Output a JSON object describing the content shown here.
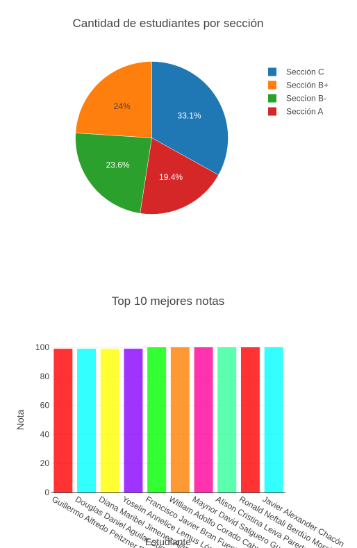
{
  "chart_data": [
    {
      "type": "pie",
      "title": "Cantidad de estudiantes por sección",
      "slices": [
        {
          "label": "Sección C",
          "percent": 33.1,
          "display": "33.1%",
          "color": "#1f77b4"
        },
        {
          "label": "Sección A",
          "percent": 19.4,
          "display": "19.4%",
          "color": "#d62728"
        },
        {
          "label": "Seccion B-",
          "percent": 23.6,
          "display": "23.6%",
          "color": "#2ca02c"
        },
        {
          "label": "Sección B+",
          "percent": 24.0,
          "display": "24%",
          "color": "#ff7f0e"
        }
      ],
      "legend": {
        "placement": "top-right",
        "order": [
          "Sección C",
          "Sección B+",
          "Seccion B-",
          "Sección A"
        ]
      }
    },
    {
      "type": "bar",
      "title": "Top 10 mejores notas",
      "xlabel": "Estudiante",
      "ylabel": "Nota",
      "ylim": [
        0,
        100
      ],
      "yticks": [
        0,
        20,
        40,
        60,
        80,
        100
      ],
      "grid": true,
      "categories": [
        "Guillermo Alfredo Peitzner Estrada",
        "Douglas Daniel Aguilar Cuque",
        "Diana Maribel Jimenez Ajanel",
        "Yoselin Annelice Lemus López",
        "Francisco Javier Bran Fuentes",
        "William Adolfo Corado Cabrera",
        "Maynor David Salguero Guerra",
        "Alison Cristina Leiva Paredes",
        "Ronald Neftali Berdúo Morales",
        "Javier Alexander Chacón"
      ],
      "values": [
        99,
        99,
        99,
        99,
        100,
        100,
        100,
        100,
        100,
        100
      ],
      "colors": [
        "#ff0000",
        "#00ffff",
        "#ffff00",
        "#8a00ff",
        "#00ff00",
        "#ff8000",
        "#ff0099",
        "#33ff99",
        "#ff0000",
        "#00ffff"
      ]
    }
  ]
}
